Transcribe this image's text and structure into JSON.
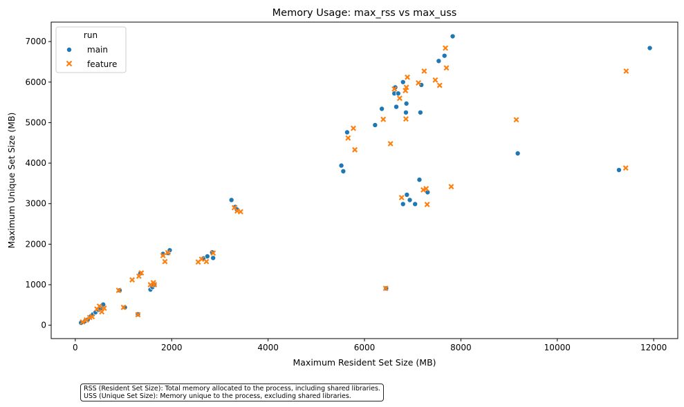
{
  "chart_data": {
    "type": "scatter",
    "title": "Memory Usage: max_rss vs max_uss",
    "xlabel": "Maximum Resident Set Size (MB)",
    "ylabel": "Maximum Unique Set Size (MB)",
    "xlim": [
      -500,
      12500
    ],
    "ylim": [
      -330,
      7480
    ],
    "xticks": [
      0,
      2000,
      4000,
      6000,
      8000,
      10000,
      12000
    ],
    "yticks": [
      0,
      1000,
      2000,
      3000,
      4000,
      5000,
      6000,
      7000
    ],
    "legend": {
      "title": "run",
      "placement": "top-left"
    },
    "series": [
      {
        "name": "main",
        "color": "#1f77b4",
        "marker": "circle",
        "points": [
          [
            120,
            60
          ],
          [
            200,
            100
          ],
          [
            260,
            140
          ],
          [
            330,
            230
          ],
          [
            370,
            270
          ],
          [
            420,
            320
          ],
          [
            480,
            380
          ],
          [
            520,
            420
          ],
          [
            580,
            510
          ],
          [
            920,
            860
          ],
          [
            1030,
            440
          ],
          [
            1300,
            270
          ],
          [
            1350,
            1280
          ],
          [
            1560,
            880
          ],
          [
            1600,
            940
          ],
          [
            1640,
            1000
          ],
          [
            1820,
            1760
          ],
          [
            1930,
            1780
          ],
          [
            1960,
            1850
          ],
          [
            2660,
            1650
          ],
          [
            2740,
            1700
          ],
          [
            2840,
            1800
          ],
          [
            2860,
            1660
          ],
          [
            3240,
            3090
          ],
          [
            3320,
            2920
          ],
          [
            3350,
            2860
          ],
          [
            5520,
            3940
          ],
          [
            5560,
            3800
          ],
          [
            5640,
            4760
          ],
          [
            6220,
            4940
          ],
          [
            6360,
            5340
          ],
          [
            6620,
            5720
          ],
          [
            6640,
            5870
          ],
          [
            6660,
            5390
          ],
          [
            6700,
            5720
          ],
          [
            6800,
            6000
          ],
          [
            6860,
            5250
          ],
          [
            6870,
            5470
          ],
          [
            6880,
            3220
          ],
          [
            6940,
            3090
          ],
          [
            6800,
            2990
          ],
          [
            7050,
            2990
          ],
          [
            7140,
            3590
          ],
          [
            7160,
            5250
          ],
          [
            7180,
            5930
          ],
          [
            7310,
            3280
          ],
          [
            7540,
            6520
          ],
          [
            7660,
            6650
          ],
          [
            7830,
            7130
          ],
          [
            6450,
            910
          ],
          [
            9180,
            4240
          ],
          [
            11280,
            3830
          ],
          [
            11920,
            6840
          ]
        ]
      },
      {
        "name": "feature",
        "color": "#ff7f0e",
        "marker": "x",
        "points": [
          [
            150,
            80
          ],
          [
            230,
            130
          ],
          [
            300,
            190
          ],
          [
            350,
            210
          ],
          [
            450,
            400
          ],
          [
            500,
            470
          ],
          [
            550,
            330
          ],
          [
            600,
            420
          ],
          [
            900,
            860
          ],
          [
            1000,
            440
          ],
          [
            1180,
            1120
          ],
          [
            1300,
            260
          ],
          [
            1320,
            1210
          ],
          [
            1370,
            1290
          ],
          [
            1560,
            1000
          ],
          [
            1620,
            1050
          ],
          [
            1640,
            1000
          ],
          [
            1820,
            1720
          ],
          [
            1860,
            1570
          ],
          [
            1920,
            1790
          ],
          [
            2550,
            1560
          ],
          [
            2620,
            1630
          ],
          [
            2720,
            1570
          ],
          [
            2860,
            1780
          ],
          [
            3300,
            2900
          ],
          [
            3360,
            2820
          ],
          [
            3430,
            2800
          ],
          [
            5660,
            4620
          ],
          [
            5770,
            4860
          ],
          [
            5800,
            4330
          ],
          [
            6390,
            5080
          ],
          [
            6540,
            4480
          ],
          [
            6620,
            5830
          ],
          [
            6730,
            5600
          ],
          [
            6770,
            3150
          ],
          [
            6850,
            5790
          ],
          [
            6860,
            5090
          ],
          [
            6870,
            5870
          ],
          [
            6890,
            6120
          ],
          [
            6440,
            910
          ],
          [
            7120,
            5980
          ],
          [
            7220,
            3340
          ],
          [
            7240,
            6270
          ],
          [
            7280,
            3370
          ],
          [
            7300,
            2980
          ],
          [
            7470,
            6050
          ],
          [
            7560,
            5920
          ],
          [
            7680,
            6840
          ],
          [
            7700,
            6350
          ],
          [
            7800,
            3420
          ],
          [
            9150,
            5070
          ],
          [
            11420,
            3880
          ],
          [
            11430,
            6270
          ]
        ]
      }
    ],
    "grid": false
  },
  "annotation": {
    "line1": "RSS (Resident Set Size): Total memory allocated to the process, including shared libraries.",
    "line2": "USS (Unique Set Size): Memory unique to the process, excluding shared libraries."
  }
}
